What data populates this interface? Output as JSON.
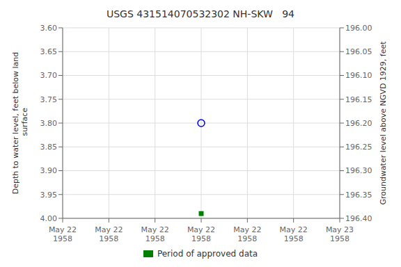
{
  "chart_data": {
    "type": "scatter",
    "title": "USGS 431514070532302 NH-SKW   94",
    "y_label": "Depth to water level, feet below land\n surface",
    "y2_label": "Groundwater level above NGVD 1929, feet",
    "categories": [
      "May 22\n1958",
      "May 22\n1958",
      "May 22\n1958",
      "May 22\n1958",
      "May 22\n1958",
      "May 22\n1958",
      "May 23\n1958"
    ],
    "ylim": [
      4.0,
      3.6
    ],
    "yticks": [
      {
        "value": 3.6,
        "label": "3.60"
      },
      {
        "value": 3.65,
        "label": "3.65"
      },
      {
        "value": 3.7,
        "label": "3.70"
      },
      {
        "value": 3.75,
        "label": "3.75"
      },
      {
        "value": 3.8,
        "label": "3.80"
      },
      {
        "value": 3.85,
        "label": "3.85"
      },
      {
        "value": 3.9,
        "label": "3.90"
      },
      {
        "value": 3.95,
        "label": "3.95"
      },
      {
        "value": 4.0,
        "label": "4.00"
      }
    ],
    "y2lim": [
      196.4,
      196.0
    ],
    "y2ticks": [
      {
        "value": 196.4,
        "label": "196.40"
      },
      {
        "value": 196.35,
        "label": "196.35"
      },
      {
        "value": 196.3,
        "label": "196.30"
      },
      {
        "value": 196.25,
        "label": "196.25"
      },
      {
        "value": 196.2,
        "label": "196.20"
      },
      {
        "value": 196.15,
        "label": "196.15"
      },
      {
        "value": 196.1,
        "label": "196.10"
      },
      {
        "value": 196.05,
        "label": "196.05"
      },
      {
        "value": 196.0,
        "label": "196.00"
      }
    ],
    "series": [
      {
        "color": "#0000ff",
        "marker": "open_circle",
        "values": [
          null,
          null,
          null,
          3.8,
          null,
          null,
          null
        ]
      },
      {
        "name": "Period of approved data",
        "color": "#008000",
        "marker": "square",
        "values": [
          null,
          null,
          null,
          3.99,
          null,
          null,
          null
        ]
      }
    ],
    "grid": true,
    "legend": "bottom"
  }
}
